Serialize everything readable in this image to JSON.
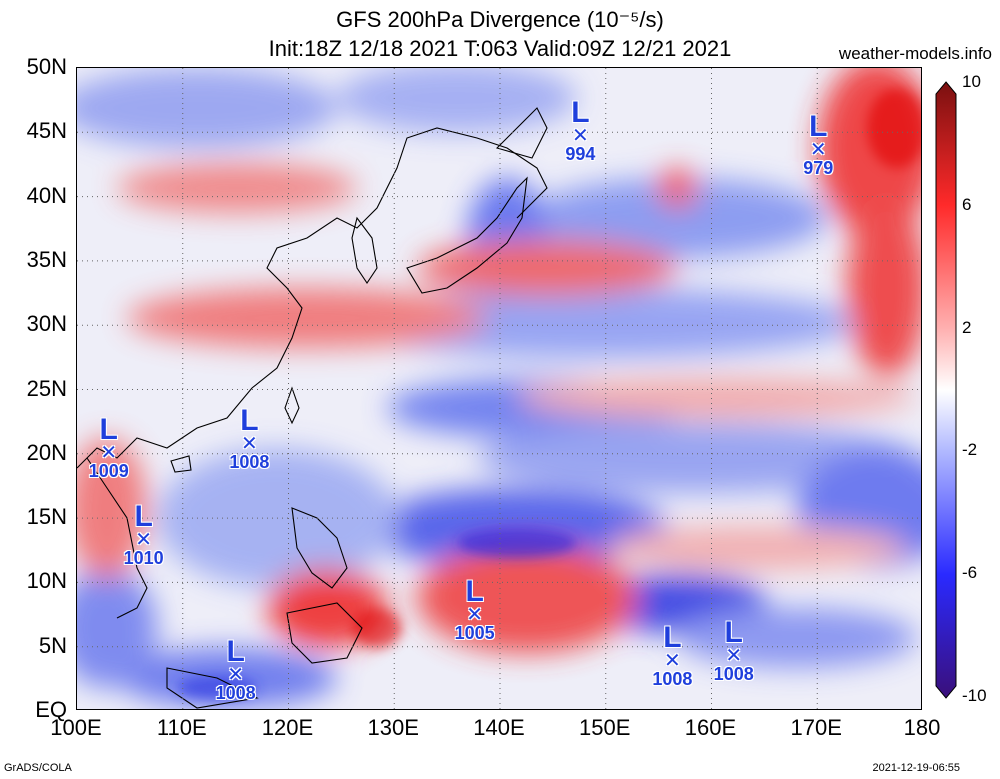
{
  "header": {
    "title_line1": "GFS 200hPa Divergence (10⁻⁵/s)",
    "title_line2": "Init:18Z 12/18 2021 T:063 Valid:09Z 12/21 2021",
    "site": "weather-models.info"
  },
  "footer": {
    "software": "GrADS/COLA",
    "timestamp": "2021-12-19-06:55"
  },
  "map": {
    "lon_range": [
      100,
      180
    ],
    "lat_range": [
      0,
      50
    ],
    "lon_ticks": [
      "100E",
      "110E",
      "120E",
      "130E",
      "140E",
      "150E",
      "160E",
      "170E",
      "180"
    ],
    "lat_ticks": [
      "EQ",
      "5N",
      "10N",
      "15N",
      "20N",
      "25N",
      "30N",
      "35N",
      "40N",
      "45N",
      "50N"
    ],
    "colorbar": {
      "labels": [
        "10",
        "6",
        "2",
        "-2",
        "-6",
        "-10"
      ],
      "min": -10,
      "max": 10,
      "colors": {
        "high": "#7a1010",
        "pos": "#ff2a2a",
        "neutral": "#ffffff",
        "neg": "#2a2aff",
        "low": "#3a0f7a"
      }
    },
    "lows": [
      {
        "pressure": "994",
        "lon": 147.6,
        "lat": 44.3
      },
      {
        "pressure": "979",
        "lon": 170.1,
        "lat": 43.2
      },
      {
        "pressure": "1008",
        "lon": 116.3,
        "lat": 20.4
      },
      {
        "pressure": "1009",
        "lon": 103.0,
        "lat": 19.7
      },
      {
        "pressure": "1010",
        "lon": 106.3,
        "lat": 12.9
      },
      {
        "pressure": "1005",
        "lon": 137.6,
        "lat": 7.1
      },
      {
        "pressure": "1008",
        "lon": 156.3,
        "lat": 3.5
      },
      {
        "pressure": "1008",
        "lon": 162.1,
        "lat": 3.9
      },
      {
        "pressure": "1008",
        "lon": 115.0,
        "lat": 2.4
      }
    ],
    "low_symbol": "L",
    "low_marker": "✕"
  }
}
